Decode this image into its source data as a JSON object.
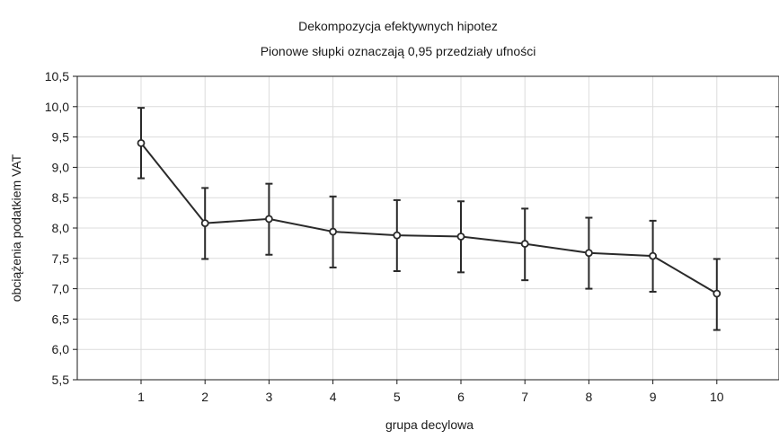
{
  "chart_data": {
    "type": "line",
    "title": "Dekompozycja efektywnych hipotez",
    "subtitle": "Pionowe słupki oznaczają 0,95 przedziały ufności",
    "xlabel": "grupa decylowa",
    "ylabel": "obciążenia podatkiem VAT",
    "categories": [
      "1",
      "2",
      "3",
      "4",
      "5",
      "6",
      "7",
      "8",
      "9",
      "10"
    ],
    "ylim": [
      5.5,
      10.5
    ],
    "yticks": [
      "5,5",
      "6,0",
      "6,5",
      "7,0",
      "7,5",
      "8,0",
      "8,5",
      "9,0",
      "9,5",
      "10,0",
      "10,5"
    ],
    "grid": true,
    "series": [
      {
        "values": [
          9.4,
          8.08,
          8.15,
          7.94,
          7.88,
          7.86,
          7.74,
          7.59,
          7.54,
          6.92
        ],
        "ci_lower": [
          8.82,
          7.49,
          7.56,
          7.35,
          7.29,
          7.27,
          7.14,
          7.0,
          6.95,
          6.32
        ],
        "ci_upper": [
          9.98,
          8.66,
          8.73,
          8.52,
          8.46,
          8.44,
          8.32,
          8.17,
          8.12,
          7.49
        ]
      }
    ]
  }
}
